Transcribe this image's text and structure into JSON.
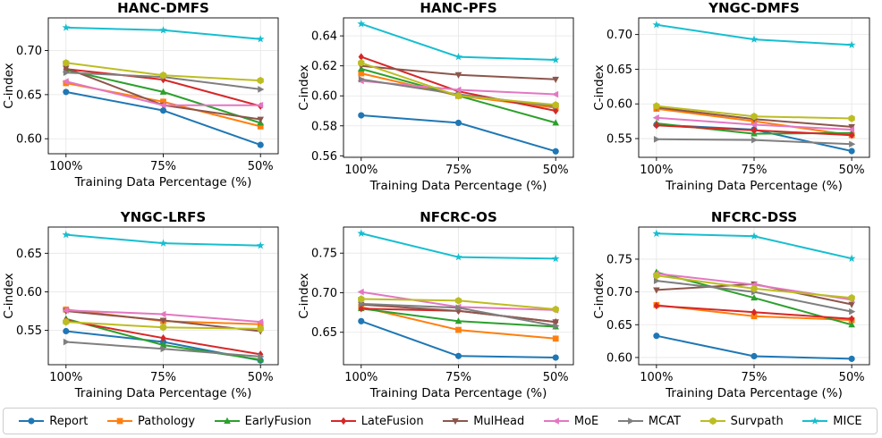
{
  "legend": {
    "entries": [
      {
        "name": "Report",
        "color": "#1f77b4",
        "marker": "circle"
      },
      {
        "name": "Pathology",
        "color": "#ff7f0e",
        "marker": "square"
      },
      {
        "name": "EarlyFusion",
        "color": "#2ca02c",
        "marker": "triangle-up"
      },
      {
        "name": "LateFusion",
        "color": "#d62728",
        "marker": "diamond"
      },
      {
        "name": "MulHead",
        "color": "#8c564b",
        "marker": "triangle-down"
      },
      {
        "name": "MoE",
        "color": "#e377c2",
        "marker": "triangle-left"
      },
      {
        "name": "MCAT",
        "color": "#7f7f7f",
        "marker": "triangle-right"
      },
      {
        "name": "Survpath",
        "color": "#bcbd22",
        "marker": "hexagon"
      },
      {
        "name": "MICE",
        "color": "#17becf",
        "marker": "star"
      }
    ]
  },
  "chart_data": [
    {
      "type": "line",
      "title": "HANC-DMFS",
      "xlabel": "Training Data Percentage (%)",
      "ylabel": "C-index",
      "categories": [
        "100%",
        "75%",
        "50%"
      ],
      "ylim": [
        0.583,
        0.737
      ],
      "yticks": [
        "0.60",
        "0.65",
        "0.70"
      ],
      "grid": true,
      "series": [
        {
          "name": "Report",
          "values": [
            0.653,
            0.632,
            0.593
          ]
        },
        {
          "name": "Pathology",
          "values": [
            0.663,
            0.642,
            0.614
          ]
        },
        {
          "name": "EarlyFusion",
          "values": [
            0.678,
            0.653,
            0.618
          ]
        },
        {
          "name": "LateFusion",
          "values": [
            0.679,
            0.667,
            0.637
          ]
        },
        {
          "name": "MulHead",
          "values": [
            0.68,
            0.638,
            0.622
          ]
        },
        {
          "name": "MoE",
          "values": [
            0.665,
            0.638,
            0.638
          ]
        },
        {
          "name": "MCAT",
          "values": [
            0.675,
            0.67,
            0.656
          ]
        },
        {
          "name": "Survpath",
          "values": [
            0.686,
            0.672,
            0.666
          ]
        },
        {
          "name": "MICE",
          "values": [
            0.726,
            0.723,
            0.713
          ]
        }
      ]
    },
    {
      "type": "line",
      "title": "HANC-PFS",
      "xlabel": "Training Data Percentage (%)",
      "ylabel": "C-index",
      "categories": [
        "100%",
        "75%",
        "50%"
      ],
      "ylim": [
        0.559,
        0.652
      ],
      "yticks": [
        "0.56",
        "0.58",
        "0.60",
        "0.62",
        "0.64"
      ],
      "grid": true,
      "series": [
        {
          "name": "Report",
          "values": [
            0.587,
            0.582,
            0.563
          ]
        },
        {
          "name": "Pathology",
          "values": [
            0.615,
            0.6,
            0.592
          ]
        },
        {
          "name": "EarlyFusion",
          "values": [
            0.618,
            0.6,
            0.582
          ]
        },
        {
          "name": "LateFusion",
          "values": [
            0.626,
            0.603,
            0.59
          ]
        },
        {
          "name": "MulHead",
          "values": [
            0.62,
            0.614,
            0.611
          ]
        },
        {
          "name": "MoE",
          "values": [
            0.61,
            0.604,
            0.601
          ]
        },
        {
          "name": "MCAT",
          "values": [
            0.611,
            0.601,
            0.593
          ]
        },
        {
          "name": "Survpath",
          "values": [
            0.622,
            0.6,
            0.594
          ]
        },
        {
          "name": "MICE",
          "values": [
            0.648,
            0.626,
            0.624
          ]
        }
      ]
    },
    {
      "type": "line",
      "title": "YNGC-DMFS",
      "xlabel": "Training Data Percentage (%)",
      "ylabel": "C-index",
      "categories": [
        "100%",
        "75%",
        "50%"
      ],
      "ylim": [
        0.523,
        0.724
      ],
      "yticks": [
        "0.55",
        "0.60",
        "0.65",
        "0.70"
      ],
      "grid": true,
      "series": [
        {
          "name": "Report",
          "values": [
            0.57,
            0.563,
            0.532
          ]
        },
        {
          "name": "Pathology",
          "values": [
            0.593,
            0.575,
            0.555
          ]
        },
        {
          "name": "EarlyFusion",
          "values": [
            0.572,
            0.557,
            0.558
          ]
        },
        {
          "name": "LateFusion",
          "values": [
            0.569,
            0.562,
            0.555
          ]
        },
        {
          "name": "MulHead",
          "values": [
            0.595,
            0.578,
            0.567
          ]
        },
        {
          "name": "MoE",
          "values": [
            0.58,
            0.57,
            0.563
          ]
        },
        {
          "name": "MCAT",
          "values": [
            0.549,
            0.548,
            0.542
          ]
        },
        {
          "name": "Survpath",
          "values": [
            0.597,
            0.582,
            0.579
          ]
        },
        {
          "name": "MICE",
          "values": [
            0.714,
            0.693,
            0.685
          ]
        }
      ]
    },
    {
      "type": "line",
      "title": "YNGC-LRFS",
      "xlabel": "Training Data Percentage (%)",
      "ylabel": "C-index",
      "categories": [
        "100%",
        "75%",
        "50%"
      ],
      "ylim": [
        0.5055,
        0.684
      ],
      "yticks": [
        "0.55",
        "0.60",
        "0.65"
      ],
      "grid": true,
      "series": [
        {
          "name": "Report",
          "values": [
            0.549,
            0.535,
            0.511
          ]
        },
        {
          "name": "Pathology",
          "values": [
            0.577,
            0.562,
            0.558
          ]
        },
        {
          "name": "EarlyFusion",
          "values": [
            0.565,
            0.531,
            0.512
          ]
        },
        {
          "name": "LateFusion",
          "values": [
            0.563,
            0.54,
            0.519
          ]
        },
        {
          "name": "MulHead",
          "values": [
            0.575,
            0.563,
            0.549
          ]
        },
        {
          "name": "MoE",
          "values": [
            0.576,
            0.571,
            0.561
          ]
        },
        {
          "name": "MCAT",
          "values": [
            0.535,
            0.526,
            0.516
          ]
        },
        {
          "name": "Survpath",
          "values": [
            0.561,
            0.554,
            0.552
          ]
        },
        {
          "name": "MICE",
          "values": [
            0.674,
            0.663,
            0.66
          ]
        }
      ]
    },
    {
      "type": "line",
      "title": "NFCRC-OS",
      "xlabel": "Training Data Percentage (%)",
      "ylabel": "C-index",
      "categories": [
        "100%",
        "75%",
        "50%"
      ],
      "ylim": [
        0.609,
        0.783
      ],
      "yticks": [
        "0.65",
        "0.70",
        "0.75"
      ],
      "grid": true,
      "series": [
        {
          "name": "Report",
          "values": [
            0.664,
            0.62,
            0.618
          ]
        },
        {
          "name": "Pathology",
          "values": [
            0.682,
            0.653,
            0.642
          ]
        },
        {
          "name": "EarlyFusion",
          "values": [
            0.68,
            0.664,
            0.657
          ]
        },
        {
          "name": "LateFusion",
          "values": [
            0.68,
            0.677,
            0.663
          ]
        },
        {
          "name": "MulHead",
          "values": [
            0.685,
            0.677,
            0.663
          ]
        },
        {
          "name": "MoE",
          "values": [
            0.701,
            0.682,
            0.678
          ]
        },
        {
          "name": "MCAT",
          "values": [
            0.686,
            0.681,
            0.658
          ]
        },
        {
          "name": "Survpath",
          "values": [
            0.692,
            0.69,
            0.679
          ]
        },
        {
          "name": "MICE",
          "values": [
            0.775,
            0.745,
            0.743
          ]
        }
      ]
    },
    {
      "type": "line",
      "title": "NFCRC-DSS",
      "xlabel": "Training Data Percentage (%)",
      "ylabel": "C-index",
      "categories": [
        "100%",
        "75%",
        "50%"
      ],
      "ylim": [
        0.589,
        0.799
      ],
      "yticks": [
        "0.60",
        "0.65",
        "0.70",
        "0.75"
      ],
      "grid": true,
      "series": [
        {
          "name": "Report",
          "values": [
            0.633,
            0.602,
            0.598
          ]
        },
        {
          "name": "Pathology",
          "values": [
            0.68,
            0.663,
            0.657
          ]
        },
        {
          "name": "EarlyFusion",
          "values": [
            0.73,
            0.691,
            0.65
          ]
        },
        {
          "name": "LateFusion",
          "values": [
            0.679,
            0.669,
            0.659
          ]
        },
        {
          "name": "MulHead",
          "values": [
            0.703,
            0.712,
            0.681
          ]
        },
        {
          "name": "MoE",
          "values": [
            0.728,
            0.711,
            0.688
          ]
        },
        {
          "name": "MCAT",
          "values": [
            0.717,
            0.7,
            0.67
          ]
        },
        {
          "name": "Survpath",
          "values": [
            0.725,
            0.705,
            0.691
          ]
        },
        {
          "name": "MICE",
          "values": [
            0.789,
            0.785,
            0.751
          ]
        }
      ]
    }
  ]
}
